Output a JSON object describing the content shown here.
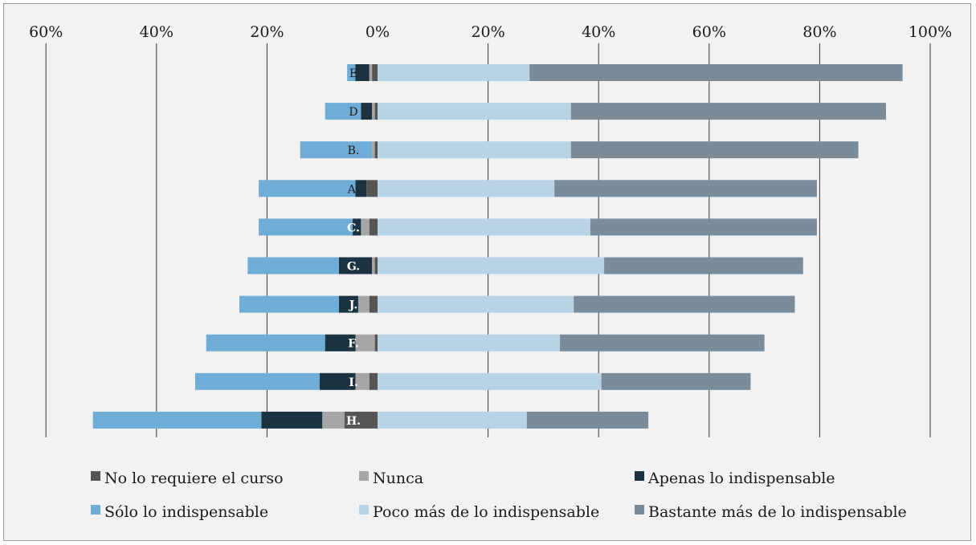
{
  "chart_data": {
    "type": "bar",
    "orientation": "horizontal-diverging",
    "title": "",
    "xlabel": "",
    "ylabel": "",
    "xlim": [
      -60,
      100
    ],
    "grid": true,
    "tick_values": [
      -60,
      -40,
      -20,
      0,
      20,
      40,
      60,
      80,
      100
    ],
    "tick_labels": [
      "60%",
      "40%",
      "20%",
      "0%",
      "20%",
      "40%",
      "60%",
      "80%",
      "100%"
    ],
    "categories": [
      "E",
      "D",
      "B.",
      "A.",
      "C.",
      "G.",
      "J.",
      "F.",
      "I.",
      "H."
    ],
    "series": [
      {
        "name": "No lo requiere el curso",
        "color": "#555555",
        "side": "negative",
        "values": [
          1,
          0.5,
          0.5,
          2,
          1.5,
          0.5,
          1.5,
          0.5,
          1.5,
          6
        ]
      },
      {
        "name": "Nunca",
        "color": "#a6a6a6",
        "side": "negative",
        "values": [
          0.5,
          0.5,
          0.5,
          0,
          1.5,
          0.5,
          2,
          3.5,
          2.5,
          4
        ]
      },
      {
        "name": "Apenas lo indispensable",
        "color": "#1b3240",
        "side": "negative",
        "values": [
          2.5,
          2,
          0,
          2,
          1.5,
          6,
          3.5,
          5.5,
          6.5,
          11
        ]
      },
      {
        "name": "Sólo lo indispensable",
        "color": "#6fadd6",
        "side": "negative",
        "values": [
          1.5,
          6.5,
          13,
          17.5,
          17,
          16.5,
          18,
          21.5,
          22.5,
          30.5
        ]
      },
      {
        "name": "Poco más de lo indispensable",
        "color": "#b8d3e6",
        "side": "positive",
        "values": [
          27.5,
          35,
          35,
          32,
          38.5,
          41,
          35.5,
          33,
          40.5,
          27
        ]
      },
      {
        "name": "Bastante más de lo indispensable",
        "color": "#7a8c9a",
        "side": "positive",
        "values": [
          67.5,
          57,
          52,
          47.5,
          41,
          36,
          40,
          37,
          27,
          22
        ]
      }
    ],
    "legend_position": "bottom"
  },
  "colors": {
    "background": "#f2f2f2",
    "grid": "#3a3a3a"
  }
}
